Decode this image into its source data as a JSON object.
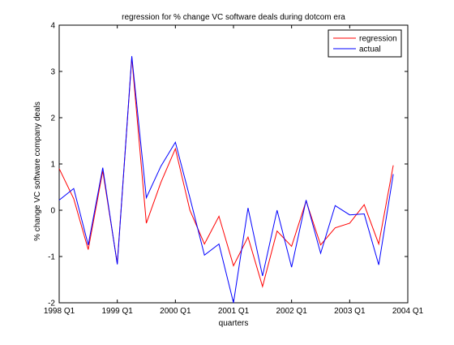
{
  "chart_data": {
    "type": "line",
    "title": "regression for % change VC software deals during dotcom era",
    "xlabel": "quarters",
    "ylabel": "% change VC software company deals",
    "xlim": [
      0,
      24
    ],
    "ylim": [
      -2,
      4
    ],
    "x_ticks": [
      {
        "value": 0,
        "label": "1998 Q1"
      },
      {
        "value": 4,
        "label": "1999 Q1"
      },
      {
        "value": 8,
        "label": "2000 Q1"
      },
      {
        "value": 12,
        "label": "2001 Q1"
      },
      {
        "value": 16,
        "label": "2002 Q1"
      },
      {
        "value": 20,
        "label": "2003 Q1"
      },
      {
        "value": 24,
        "label": "2004 Q1"
      }
    ],
    "y_ticks": [
      {
        "value": -2,
        "label": "-2"
      },
      {
        "value": -1,
        "label": "-1"
      },
      {
        "value": 0,
        "label": "0"
      },
      {
        "value": 1,
        "label": "1"
      },
      {
        "value": 2,
        "label": "2"
      },
      {
        "value": 3,
        "label": "3"
      },
      {
        "value": 4,
        "label": "4"
      }
    ],
    "grid": false,
    "legend_position": "top-right",
    "x": [
      0,
      1,
      2,
      3,
      4,
      5,
      6,
      7,
      8,
      9,
      10,
      11,
      12,
      13,
      14,
      15,
      16,
      17,
      18,
      19,
      20,
      21,
      22,
      23
    ],
    "series": [
      {
        "name": "regression",
        "color": "#ff0000",
        "values": [
          0.9,
          0.25,
          -0.85,
          0.85,
          -1.15,
          3.3,
          -0.28,
          0.6,
          1.33,
          0.0,
          -0.73,
          -0.13,
          -1.2,
          -0.58,
          -1.65,
          -0.45,
          -0.78,
          0.2,
          -0.75,
          -0.38,
          -0.28,
          0.12,
          -0.73,
          0.97
        ]
      },
      {
        "name": "actual",
        "color": "#0000ff",
        "values": [
          0.22,
          0.47,
          -0.75,
          0.92,
          -1.17,
          3.33,
          0.27,
          0.95,
          1.47,
          0.27,
          -0.97,
          -0.73,
          -2.0,
          0.05,
          -1.42,
          0.0,
          -1.23,
          0.22,
          -0.93,
          0.1,
          -0.1,
          -0.08,
          -1.18,
          0.78
        ]
      }
    ]
  }
}
